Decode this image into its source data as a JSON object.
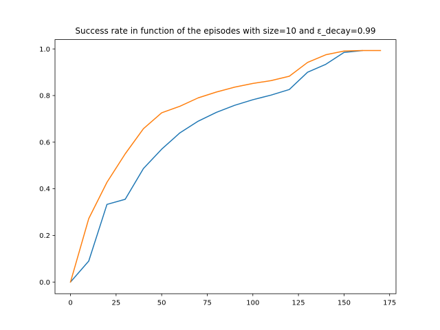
{
  "chart_data": {
    "type": "line",
    "title": "Success rate in function of the episodes with size=10 and ε_decay=0.99",
    "xlabel": "",
    "ylabel": "",
    "xlim": [
      -8.5,
      178.5
    ],
    "ylim": [
      -0.05,
      1.04
    ],
    "xticks": [
      0,
      25,
      50,
      75,
      100,
      125,
      150,
      175
    ],
    "yticks": [
      0.0,
      0.2,
      0.4,
      0.6,
      0.8,
      1.0
    ],
    "xtick_labels": [
      "0",
      "25",
      "50",
      "75",
      "100",
      "125",
      "150",
      "175"
    ],
    "ytick_labels": [
      "0.0",
      "0.2",
      "0.4",
      "0.6",
      "0.8",
      "1.0"
    ],
    "grid": false,
    "series": [
      {
        "color": "#1f77b4",
        "x": [
          0,
          10,
          20,
          30,
          40,
          50,
          60,
          70,
          80,
          90,
          100,
          110,
          120,
          130,
          140,
          150,
          160
        ],
        "y": [
          0.0,
          0.09,
          0.333,
          0.355,
          0.487,
          0.57,
          0.64,
          0.69,
          0.728,
          0.758,
          0.782,
          0.802,
          0.826,
          0.9,
          0.934,
          0.985,
          0.993
        ]
      },
      {
        "color": "#ff7f0e",
        "x": [
          0,
          10,
          20,
          30,
          40,
          50,
          60,
          70,
          80,
          90,
          100,
          110,
          120,
          130,
          140,
          150,
          160,
          170
        ],
        "y": [
          0.0,
          0.272,
          0.428,
          0.55,
          0.658,
          0.726,
          0.754,
          0.79,
          0.815,
          0.836,
          0.852,
          0.864,
          0.883,
          0.942,
          0.975,
          0.991,
          0.993,
          0.993
        ]
      }
    ]
  }
}
